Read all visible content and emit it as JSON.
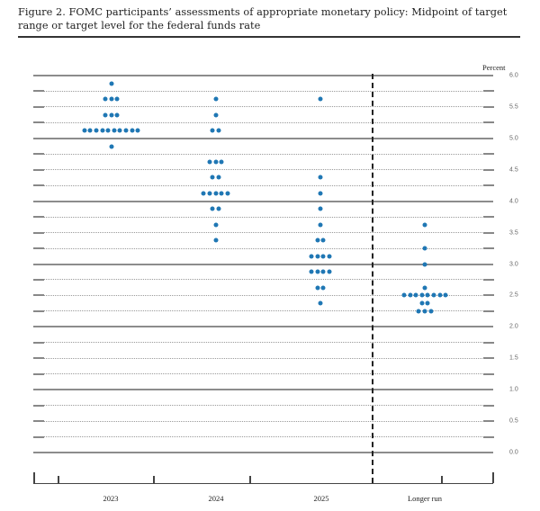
{
  "title": "Figure 2.  FOMC participants’ assessments of appropriate monetary policy: Midpoint of target range or target level for the federal funds rate",
  "axis": {
    "y_unit_label": "Percent",
    "y_ticks": [
      "6.0",
      "5.5",
      "5.0",
      "4.5",
      "4.0",
      "3.5",
      "3.0",
      "2.5",
      "2.0",
      "1.5",
      "1.0",
      "0.5",
      "0.0"
    ],
    "x_labels": [
      "2023",
      "2024",
      "2025",
      "Longer run"
    ]
  },
  "colors": {
    "dot": "#1f77b4",
    "grid_major": "#8c8c8c",
    "grid_minor": "#9a9a9a"
  },
  "chart_data": {
    "type": "scatter",
    "title": "FOMC participants' assessments of appropriate monetary policy: Midpoint of target range or target level for the federal funds rate",
    "xlabel": "",
    "ylabel": "Percent",
    "ylim": [
      0,
      6
    ],
    "grid": true,
    "grid_step": 0.25,
    "categories": [
      "2023",
      "2024",
      "2025",
      "Longer run"
    ],
    "series": [
      {
        "name": "2023",
        "points": [
          {
            "rate": 5.875,
            "count": 1
          },
          {
            "rate": 5.625,
            "count": 3
          },
          {
            "rate": 5.375,
            "count": 3
          },
          {
            "rate": 5.125,
            "count": 10
          },
          {
            "rate": 4.875,
            "count": 1
          }
        ]
      },
      {
        "name": "2024",
        "points": [
          {
            "rate": 5.625,
            "count": 1
          },
          {
            "rate": 5.375,
            "count": 1
          },
          {
            "rate": 5.125,
            "count": 2
          },
          {
            "rate": 4.625,
            "count": 3
          },
          {
            "rate": 4.375,
            "count": 2
          },
          {
            "rate": 4.125,
            "count": 5
          },
          {
            "rate": 3.875,
            "count": 2
          },
          {
            "rate": 3.625,
            "count": 1
          },
          {
            "rate": 3.375,
            "count": 1
          }
        ]
      },
      {
        "name": "2025",
        "points": [
          {
            "rate": 5.625,
            "count": 1
          },
          {
            "rate": 4.375,
            "count": 1
          },
          {
            "rate": 4.125,
            "count": 1
          },
          {
            "rate": 3.875,
            "count": 1
          },
          {
            "rate": 3.625,
            "count": 1
          },
          {
            "rate": 3.375,
            "count": 2
          },
          {
            "rate": 3.125,
            "count": 4
          },
          {
            "rate": 2.875,
            "count": 4
          },
          {
            "rate": 2.625,
            "count": 2
          },
          {
            "rate": 2.375,
            "count": 1
          }
        ]
      },
      {
        "name": "Longer run",
        "points": [
          {
            "rate": 3.625,
            "count": 1
          },
          {
            "rate": 3.25,
            "count": 1
          },
          {
            "rate": 3.0,
            "count": 1
          },
          {
            "rate": 2.625,
            "count": 1
          },
          {
            "rate": 2.5,
            "count": 8
          },
          {
            "rate": 2.375,
            "count": 2
          },
          {
            "rate": 2.25,
            "count": 3
          }
        ]
      }
    ]
  }
}
